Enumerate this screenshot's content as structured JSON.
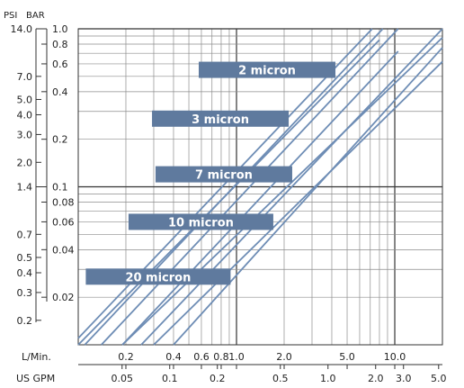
{
  "colors": {
    "line": "#6e8db5",
    "band": "#5f7a9e",
    "grid": "#8c8c8c",
    "grid_major": "#333333"
  },
  "chart_data": {
    "type": "line",
    "log_scale": {
      "x": true,
      "y": true
    },
    "grid": true,
    "x_axis_lpm": {
      "label": "L/Min.",
      "range": [
        0.1,
        20
      ],
      "ticks": [
        {
          "value": 0.2,
          "label": "0.2"
        },
        {
          "value": 0.4,
          "label": "0.4"
        },
        {
          "value": 0.6,
          "label": "0.6"
        },
        {
          "value": 0.8,
          "label": "0.8"
        },
        {
          "value": 1.0,
          "label": "1.0"
        },
        {
          "value": 2.0,
          "label": "2.0"
        },
        {
          "value": 5.0,
          "label": "5.0"
        },
        {
          "value": 10.0,
          "label": "10.0"
        }
      ]
    },
    "x_axis_gpm": {
      "label": "US GPM",
      "ticks": [
        {
          "value": 0.05,
          "label": "0.05"
        },
        {
          "value": 0.1,
          "label": "0.1"
        },
        {
          "value": 0.2,
          "label": "0.2"
        },
        {
          "value": 0.5,
          "label": "0.5"
        },
        {
          "value": 1.0,
          "label": "1.0"
        },
        {
          "value": 2.0,
          "label": "2.0"
        },
        {
          "value": 3.0,
          "label": "3.0"
        },
        {
          "value": 5.0,
          "label": "5.0"
        }
      ]
    },
    "y_axis_psi": {
      "label": "PSI",
      "ticks": [
        {
          "value": 14.0,
          "label": "14.0"
        },
        {
          "value": 7.0,
          "label": "7.0"
        },
        {
          "value": 5.0,
          "label": "5.0"
        },
        {
          "value": 4.0,
          "label": "4.0"
        },
        {
          "value": 3.0,
          "label": "3.0"
        },
        {
          "value": 2.0,
          "label": "2.0"
        },
        {
          "value": 1.4,
          "label": "1.4"
        },
        {
          "value": 0.7,
          "label": "0.7"
        },
        {
          "value": 0.5,
          "label": "0.5"
        },
        {
          "value": 0.4,
          "label": "0.4"
        },
        {
          "value": 0.3,
          "label": "0.3"
        },
        {
          "value": 0.2,
          "label": "0.2"
        }
      ]
    },
    "y_axis_bar": {
      "label": "BAR",
      "range": [
        0.01,
        1.0
      ],
      "ticks": [
        {
          "value": 1.0,
          "label": "1.0"
        },
        {
          "value": 0.8,
          "label": "0.8"
        },
        {
          "value": 0.6,
          "label": "0.6"
        },
        {
          "value": 0.4,
          "label": "0.4"
        },
        {
          "value": 0.2,
          "label": "0.2"
        },
        {
          "value": 0.1,
          "label": "0.1"
        },
        {
          "value": 0.08,
          "label": "0.08"
        },
        {
          "value": 0.06,
          "label": "0.06"
        },
        {
          "value": 0.04,
          "label": "0.04"
        },
        {
          "value": 0.02,
          "label": "0.02"
        }
      ]
    },
    "series": [
      {
        "name": "2 micron",
        "label_anchor": {
          "x_lpm": 0.75,
          "y_bar": 0.55
        },
        "lines": [
          {
            "x": [
              0.25,
              20
            ],
            "y": [
              0.01,
              1.0
            ]
          },
          {
            "x": [
              0.4,
              20
            ],
            "y": [
              0.01,
              0.76
            ]
          }
        ]
      },
      {
        "name": "3 micron",
        "label_anchor": {
          "x_lpm": 0.38,
          "y_bar": 0.27
        },
        "lines": [
          {
            "x": [
              0.19,
              20
            ],
            "y": [
              0.01,
              0.88
            ]
          },
          {
            "x": [
              0.3,
              20
            ],
            "y": [
              0.01,
              0.62
            ]
          }
        ]
      },
      {
        "name": "7 micron",
        "label_anchor": {
          "x_lpm": 0.4,
          "y_bar": 0.12
        },
        "lines": [
          {
            "x": [
              0.14,
              10.5
            ],
            "y": [
              0.01,
              1.0
            ]
          },
          {
            "x": [
              0.19,
              10.5
            ],
            "y": [
              0.01,
              0.72
            ]
          }
        ]
      },
      {
        "name": "10 micron",
        "label_anchor": {
          "x_lpm": 0.27,
          "y_bar": 0.06
        },
        "lines": [
          {
            "x": [
              0.1,
              7.2
            ],
            "y": [
              0.011,
              1.0
            ]
          },
          {
            "x": [
              0.11,
              8.4
            ],
            "y": [
              0.01,
              1.0
            ]
          }
        ]
      },
      {
        "name": "20 micron",
        "label_anchor": {
          "x_lpm": 0.145,
          "y_bar": 0.027
        },
        "lines": [
          {
            "x": [
              0.1,
              8.0
            ],
            "y": [
              0.01,
              0.85
            ]
          }
        ]
      }
    ]
  }
}
